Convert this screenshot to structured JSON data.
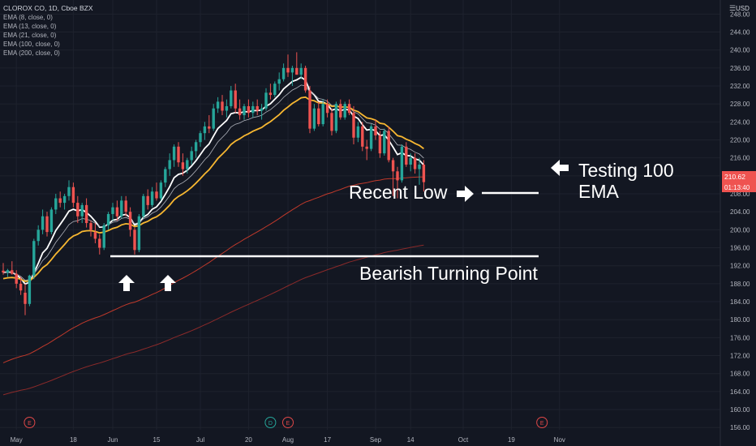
{
  "chart_data": {
    "type": "candlestick",
    "symbol_title": "CLOROX CO, 1D, Cboe BZX",
    "indicators": [
      {
        "label": "EMA (8, close, 0)",
        "color": "#ffffff"
      },
      {
        "label": "EMA (13, close, 0)",
        "color": "#b2b5be"
      },
      {
        "label": "EMA (21, close, 0)",
        "color": "#f7b731"
      },
      {
        "label": "EMA (100, close, 0)",
        "color": "#c0392b"
      },
      {
        "label": "EMA (200, close, 0)",
        "color": "#8b2a2a"
      }
    ],
    "currency": "USD",
    "y_ticks": [
      156,
      160,
      164,
      168,
      172,
      176,
      180,
      184,
      188,
      192,
      196,
      200,
      204,
      208,
      212,
      216,
      220,
      224,
      228,
      232,
      236,
      240,
      244,
      248
    ],
    "ylim": [
      155.5,
      249.5
    ],
    "x_labels": [
      {
        "i": 3,
        "label": "May"
      },
      {
        "i": 16,
        "label": "18"
      },
      {
        "i": 25,
        "label": "Jun"
      },
      {
        "i": 35,
        "label": "15"
      },
      {
        "i": 45,
        "label": "Jul"
      },
      {
        "i": 56,
        "label": "20"
      },
      {
        "i": 65,
        "label": "Aug"
      },
      {
        "i": 74,
        "label": "17"
      },
      {
        "i": 85,
        "label": "Sep"
      },
      {
        "i": 93,
        "label": "14"
      },
      {
        "i": 105,
        "label": "Oct"
      },
      {
        "i": 116,
        "label": "19"
      },
      {
        "i": 127,
        "label": "Nov"
      }
    ],
    "event_markers": [
      {
        "i": 6,
        "letter": "E",
        "color": "#e04848"
      },
      {
        "i": 61,
        "letter": "D",
        "color": "#26a69a"
      },
      {
        "i": 65,
        "letter": "E",
        "color": "#e04848"
      },
      {
        "i": 123,
        "letter": "E",
        "color": "#e04848"
      }
    ],
    "last_price": "210.62",
    "countdown": "01:13:40",
    "grid": true,
    "candles": [
      [
        190.9,
        192.6,
        190.0,
        190.5
      ],
      [
        190.5,
        191.3,
        189.5,
        191.0
      ],
      [
        191.0,
        193.0,
        190.0,
        190.2
      ],
      [
        190.2,
        191.0,
        187.0,
        188.0
      ],
      [
        188.0,
        189.5,
        185.5,
        186.5
      ],
      [
        186.0,
        188.0,
        181.0,
        183.5
      ],
      [
        183.5,
        190.0,
        183.0,
        189.8
      ],
      [
        189.8,
        198.0,
        189.0,
        197.5
      ],
      [
        197.5,
        201.0,
        196.5,
        200.0
      ],
      [
        200.0,
        204.5,
        199.0,
        203.0
      ],
      [
        203.0,
        204.0,
        198.5,
        199.5
      ],
      [
        199.5,
        205.0,
        199.0,
        204.5
      ],
      [
        204.5,
        208.0,
        203.5,
        207.0
      ],
      [
        207.0,
        208.5,
        205.0,
        206.0
      ],
      [
        206.0,
        208.0,
        204.5,
        207.5
      ],
      [
        207.5,
        211.0,
        206.5,
        209.5
      ],
      [
        209.5,
        210.5,
        205.0,
        206.0
      ],
      [
        206.0,
        207.5,
        201.5,
        203.0
      ],
      [
        203.0,
        206.0,
        201.5,
        205.5
      ],
      [
        205.5,
        207.0,
        200.5,
        201.5
      ],
      [
        201.5,
        202.0,
        198.5,
        200.0
      ],
      [
        199.5,
        201.5,
        197.0,
        198.0
      ],
      [
        198.0,
        199.0,
        194.5,
        196.0
      ],
      [
        196.0,
        201.5,
        195.5,
        201.0
      ],
      [
        201.0,
        204.0,
        200.0,
        203.5
      ],
      [
        203.5,
        206.0,
        202.0,
        205.0
      ],
      [
        205.0,
        206.5,
        202.0,
        203.0
      ],
      [
        203.0,
        207.5,
        202.5,
        206.5
      ],
      [
        206.5,
        207.5,
        203.0,
        204.0
      ],
      [
        204.0,
        205.0,
        198.5,
        200.0
      ],
      [
        200.0,
        200.5,
        194.5,
        195.5
      ],
      [
        195.5,
        203.5,
        195.0,
        203.0
      ],
      [
        203.0,
        208.0,
        202.5,
        207.5
      ],
      [
        207.5,
        209.0,
        204.5,
        205.5
      ],
      [
        205.5,
        209.5,
        205.0,
        208.5
      ],
      [
        208.5,
        210.5,
        206.5,
        207.0
      ],
      [
        207.0,
        211.0,
        206.5,
        210.5
      ],
      [
        210.5,
        214.0,
        209.5,
        213.5
      ],
      [
        213.5,
        217.0,
        212.0,
        215.5
      ],
      [
        215.5,
        219.0,
        214.0,
        218.5
      ],
      [
        218.5,
        219.5,
        214.0,
        215.0
      ],
      [
        215.0,
        217.0,
        212.0,
        213.5
      ],
      [
        213.5,
        216.0,
        212.5,
        215.5
      ],
      [
        215.5,
        218.5,
        214.5,
        217.5
      ],
      [
        217.5,
        220.0,
        216.0,
        219.5
      ],
      [
        219.5,
        222.0,
        218.5,
        221.5
      ],
      [
        221.5,
        224.0,
        220.0,
        223.0
      ],
      [
        223.0,
        225.5,
        221.5,
        222.5
      ],
      [
        222.5,
        228.0,
        222.0,
        227.0
      ],
      [
        227.0,
        229.5,
        226.0,
        228.5
      ],
      [
        228.5,
        230.0,
        225.5,
        226.5
      ],
      [
        226.5,
        229.0,
        225.0,
        227.5
      ],
      [
        227.5,
        232.0,
        227.0,
        231.0
      ],
      [
        231.0,
        232.5,
        226.0,
        227.0
      ],
      [
        227.0,
        229.0,
        224.5,
        225.5
      ],
      [
        225.5,
        228.0,
        224.5,
        227.5
      ],
      [
        227.5,
        229.0,
        225.0,
        226.0
      ],
      [
        226.0,
        228.5,
        225.0,
        227.5
      ],
      [
        227.5,
        229.0,
        225.5,
        226.5
      ],
      [
        226.5,
        228.0,
        224.5,
        227.0
      ],
      [
        227.0,
        231.5,
        226.5,
        230.5
      ],
      [
        230.5,
        232.5,
        229.0,
        230.0
      ],
      [
        230.0,
        233.0,
        229.5,
        232.5
      ],
      [
        232.5,
        235.0,
        231.0,
        233.5
      ],
      [
        233.5,
        237.0,
        233.0,
        236.0
      ],
      [
        236.0,
        239.0,
        234.0,
        235.0
      ],
      [
        235.0,
        236.5,
        232.0,
        236.0
      ],
      [
        236.0,
        239.5,
        234.5,
        234.5
      ],
      [
        234.5,
        237.0,
        233.5,
        236.0
      ],
      [
        236.0,
        236.5,
        230.5,
        231.0
      ],
      [
        231.0,
        232.0,
        221.5,
        222.5
      ],
      [
        222.5,
        228.0,
        222.0,
        227.0
      ],
      [
        227.0,
        228.5,
        223.0,
        223.5
      ],
      [
        223.5,
        229.0,
        223.0,
        228.0
      ],
      [
        228.0,
        229.0,
        225.0,
        226.0
      ],
      [
        226.0,
        227.0,
        221.0,
        222.0
      ],
      [
        222.0,
        228.5,
        221.5,
        228.0
      ],
      [
        228.0,
        229.0,
        224.5,
        225.0
      ],
      [
        225.0,
        228.5,
        224.5,
        228.0
      ],
      [
        228.0,
        229.0,
        225.5,
        226.0
      ],
      [
        226.0,
        227.5,
        219.0,
        220.5
      ],
      [
        220.5,
        224.0,
        219.5,
        223.0
      ],
      [
        223.0,
        224.0,
        217.5,
        218.5
      ],
      [
        218.5,
        220.0,
        215.5,
        218.0
      ],
      [
        218.0,
        223.5,
        217.5,
        223.0
      ],
      [
        223.0,
        224.5,
        220.0,
        221.0
      ],
      [
        221.0,
        222.0,
        216.0,
        217.0
      ],
      [
        217.0,
        222.5,
        216.5,
        222.0
      ],
      [
        222.0,
        223.0,
        215.0,
        215.5
      ],
      [
        215.5,
        216.0,
        207.5,
        213.0
      ],
      [
        213.0,
        214.0,
        207.0,
        211.0
      ],
      [
        211.0,
        219.0,
        210.5,
        218.5
      ],
      [
        218.5,
        219.5,
        214.0,
        214.5
      ],
      [
        214.5,
        217.0,
        213.0,
        216.0
      ],
      [
        216.0,
        217.0,
        212.5,
        213.5
      ],
      [
        213.5,
        216.0,
        210.0,
        214.5
      ],
      [
        214.5,
        215.5,
        208.5,
        210.6
      ]
    ]
  },
  "annotations": {
    "testing_line1": "Testing 100",
    "testing_line2": "EMA",
    "recent_low": "Recent Low",
    "bearish_turning_point": "Bearish Turning Point"
  }
}
